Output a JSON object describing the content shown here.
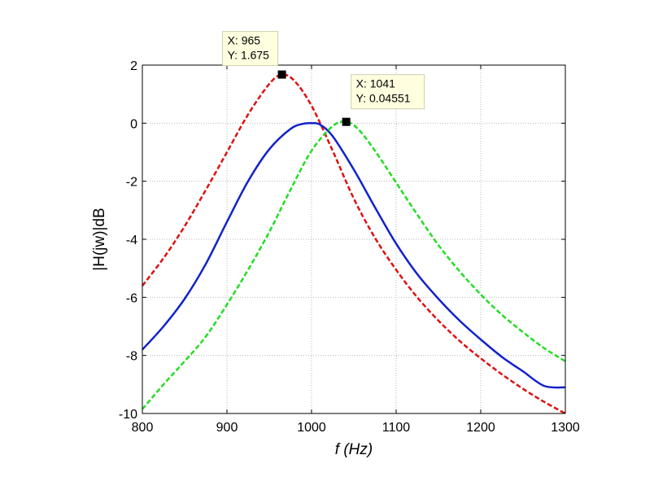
{
  "chart_data": {
    "type": "line",
    "xlabel": "f (Hz)",
    "ylabel": "|H(jw)|dB",
    "xlim": [
      800,
      1300
    ],
    "ylim": [
      -10,
      2
    ],
    "grid": true,
    "x_ticks": [
      800,
      900,
      1000,
      1100,
      1200,
      1300
    ],
    "y_ticks": [
      -10,
      -8,
      -6,
      -4,
      -2,
      0,
      2
    ],
    "series": [
      {
        "color": "#dd1111",
        "style": "dashed",
        "x": [
          800,
          825,
          850,
          875,
          900,
          925,
          950,
          965,
          980,
          1000,
          1025,
          1050,
          1075,
          1100,
          1125,
          1150,
          1175,
          1200,
          1225,
          1250,
          1275,
          1300
        ],
        "y": [
          -5.6,
          -4.65,
          -3.55,
          -2.3,
          -1.0,
          0.3,
          1.35,
          1.675,
          1.45,
          0.6,
          -0.95,
          -2.6,
          -3.95,
          -5.05,
          -6.0,
          -6.8,
          -7.5,
          -8.1,
          -8.65,
          -9.15,
          -9.6,
          -10.0
        ]
      },
      {
        "color": "#1122cc",
        "style": "solid",
        "x": [
          800,
          825,
          850,
          875,
          900,
          925,
          950,
          975,
          990,
          1000,
          1010,
          1025,
          1050,
          1075,
          1100,
          1125,
          1150,
          1175,
          1200,
          1225,
          1250,
          1275,
          1300
        ],
        "y": [
          -7.8,
          -7.0,
          -6.05,
          -4.85,
          -3.4,
          -2.0,
          -0.9,
          -0.2,
          -0.02,
          0.0,
          -0.05,
          -0.45,
          -1.6,
          -2.9,
          -4.15,
          -5.2,
          -6.05,
          -6.8,
          -7.45,
          -8.05,
          -8.55,
          -9.05,
          -9.1
        ]
      },
      {
        "color": "#22dd22",
        "style": "dashed",
        "x": [
          800,
          825,
          850,
          875,
          900,
          925,
          950,
          975,
          1000,
          1025,
          1041,
          1055,
          1075,
          1100,
          1125,
          1150,
          1175,
          1200,
          1225,
          1250,
          1275,
          1300
        ],
        "y": [
          -9.85,
          -9.0,
          -8.2,
          -7.35,
          -6.25,
          -5.05,
          -3.75,
          -2.3,
          -0.95,
          -0.1,
          0.04551,
          -0.2,
          -0.95,
          -2.05,
          -3.15,
          -4.2,
          -5.1,
          -5.9,
          -6.6,
          -7.2,
          -7.75,
          -8.2
        ]
      }
    ],
    "datatips": [
      {
        "x": 965,
        "y": 1.675,
        "lines": [
          "X: 965",
          "Y: 1.675"
        ]
      },
      {
        "x": 1041,
        "y": 0.04551,
        "lines": [
          "X: 1041",
          "Y: 0.04551"
        ]
      }
    ]
  }
}
